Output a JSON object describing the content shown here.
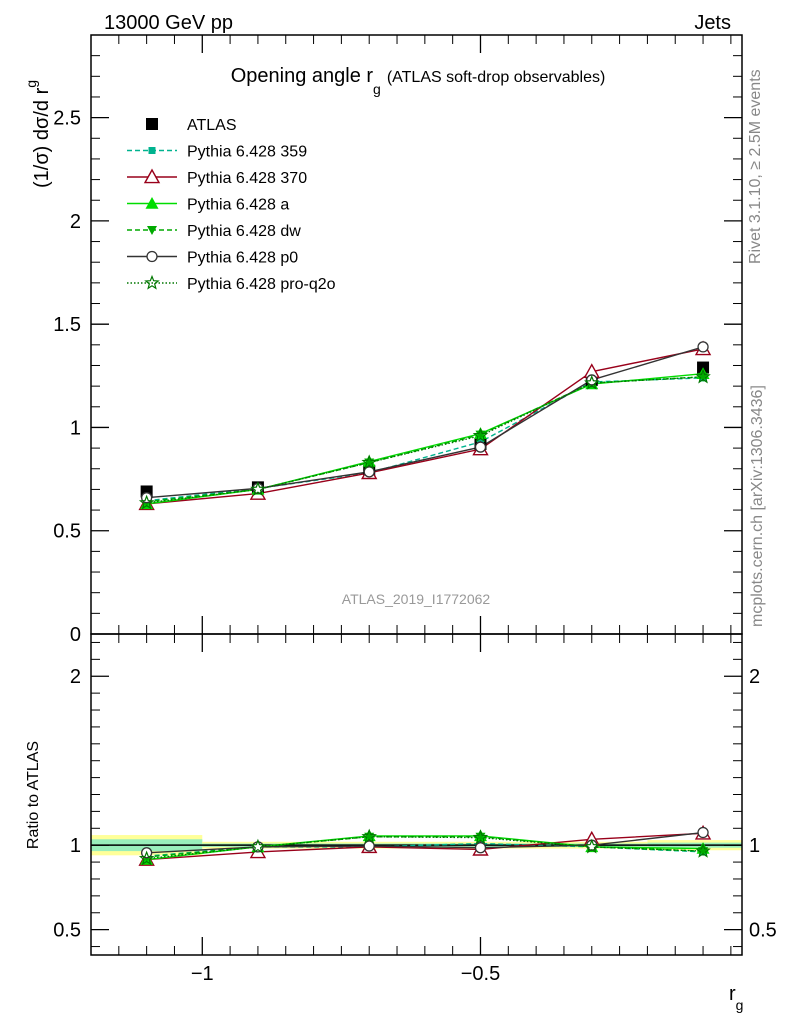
{
  "header": {
    "left": "13000 GeV pp",
    "right": "Jets"
  },
  "side_labels": {
    "rivet": "Rivet 3.1.10, ≥ 2.5M events",
    "mcplots": "mcplots.cern.ch [arXiv:1306.3436]"
  },
  "chart_data": [
    {
      "type": "line",
      "panel": "main",
      "title_main": "Opening angle r",
      "title_sub": "g",
      "title_paren": "(ATLAS soft-drop observables)",
      "ylabel_main": "(1/σ) dσ/d r",
      "ylabel_sub": "g",
      "ylim": [
        0,
        2.9
      ],
      "xlim": [
        -1.2,
        -0.03
      ],
      "yticks": [
        0.5,
        1,
        1.5,
        2,
        2.5
      ],
      "ytick_labels": [
        "0.5",
        "1",
        "1.5",
        "2",
        "2.5"
      ],
      "y_zero_label": "0",
      "watermark": "ATLAS_2019_I1772062",
      "x": [
        -1.1,
        -0.9,
        -0.7,
        -0.5,
        -0.3,
        -0.1
      ],
      "legend_position": "top-left",
      "series": [
        {
          "name": "ATLAS",
          "values": [
            0.69,
            0.71,
            0.79,
            0.92,
            1.23,
            1.29
          ],
          "color": "#000000",
          "marker": "square",
          "dash": "none",
          "is_data": true
        },
        {
          "name": "Pythia 6.428 359",
          "values": [
            0.645,
            0.705,
            0.78,
            0.93,
            1.22,
            1.24
          ],
          "color": "#00b38f",
          "marker": "square-small",
          "dash": "5,3"
        },
        {
          "name": "Pythia 6.428 370",
          "values": [
            0.63,
            0.68,
            0.78,
            0.895,
            1.27,
            1.38
          ],
          "color": "#99001a",
          "marker": "triangle-open",
          "dash": "none"
        },
        {
          "name": "Pythia 6.428 a",
          "values": [
            0.63,
            0.7,
            0.835,
            0.97,
            1.21,
            1.26
          ],
          "color": "#00dd00",
          "marker": "triangle",
          "dash": "none"
        },
        {
          "name": "Pythia 6.428 dw",
          "values": [
            0.64,
            0.7,
            0.83,
            0.965,
            1.215,
            1.245
          ],
          "color": "#00aa00",
          "marker": "triangle-down",
          "dash": "5,3"
        },
        {
          "name": "Pythia 6.428 p0",
          "values": [
            0.66,
            0.705,
            0.785,
            0.905,
            1.23,
            1.39
          ],
          "color": "#333333",
          "marker": "circle-open",
          "dash": "none"
        },
        {
          "name": "Pythia 6.428 pro-q2o",
          "values": [
            0.635,
            0.7,
            0.83,
            0.96,
            1.215,
            1.245
          ],
          "color": "#007700",
          "marker": "star",
          "dash": "1.5,2"
        }
      ]
    },
    {
      "type": "line",
      "panel": "ratio",
      "ylabel": "Ratio to ATLAS",
      "xlabel_main": "r",
      "xlabel_sub": "g",
      "ylim": [
        0.35,
        2.25
      ],
      "xlim": [
        -1.2,
        -0.03
      ],
      "yticks": [
        0.5,
        1,
        2
      ],
      "ytick_labels": [
        "0.5",
        "1",
        "2"
      ],
      "xticks": [
        -1,
        -0.5
      ],
      "xtick_labels": [
        "−1",
        "−0.5"
      ],
      "x": [
        -1.1,
        -0.9,
        -0.7,
        -0.5,
        -0.3,
        -0.1
      ],
      "bins": [
        [
          -1.2,
          -1.0
        ],
        [
          -1.0,
          -0.8
        ],
        [
          -0.8,
          -0.6
        ],
        [
          -0.6,
          -0.4
        ],
        [
          -0.4,
          -0.2
        ],
        [
          -0.2,
          -0.03
        ]
      ],
      "band_outer": [
        0.06,
        0.02,
        0.02,
        0.02,
        0.02,
        0.03
      ],
      "band_inner": [
        0.035,
        0.01,
        0.01,
        0.01,
        0.01,
        0.015
      ],
      "series": [
        {
          "name": "Pythia 6.428 359",
          "values": [
            0.935,
            0.99,
            0.99,
            1.01,
            0.99,
            0.96
          ],
          "color": "#00b38f",
          "marker": "square-small",
          "dash": "5,3"
        },
        {
          "name": "Pythia 6.428 370",
          "values": [
            0.915,
            0.96,
            0.99,
            0.975,
            1.035,
            1.07
          ],
          "color": "#99001a",
          "marker": "triangle-open",
          "dash": "none"
        },
        {
          "name": "Pythia 6.428 a",
          "values": [
            0.915,
            0.99,
            1.055,
            1.055,
            0.99,
            0.98
          ],
          "color": "#00dd00",
          "marker": "triangle",
          "dash": "none"
        },
        {
          "name": "Pythia 6.428 dw",
          "values": [
            0.93,
            0.99,
            1.05,
            1.05,
            0.99,
            0.965
          ],
          "color": "#00aa00",
          "marker": "triangle-down",
          "dash": "5,3"
        },
        {
          "name": "Pythia 6.428 p0",
          "values": [
            0.955,
            0.99,
            0.995,
            0.985,
            1.0,
            1.075
          ],
          "color": "#333333",
          "marker": "circle-open",
          "dash": "none"
        },
        {
          "name": "Pythia 6.428 pro-q2o",
          "values": [
            0.92,
            0.99,
            1.05,
            1.045,
            0.99,
            0.965
          ],
          "color": "#007700",
          "marker": "star",
          "dash": "1.5,2"
        }
      ]
    }
  ]
}
